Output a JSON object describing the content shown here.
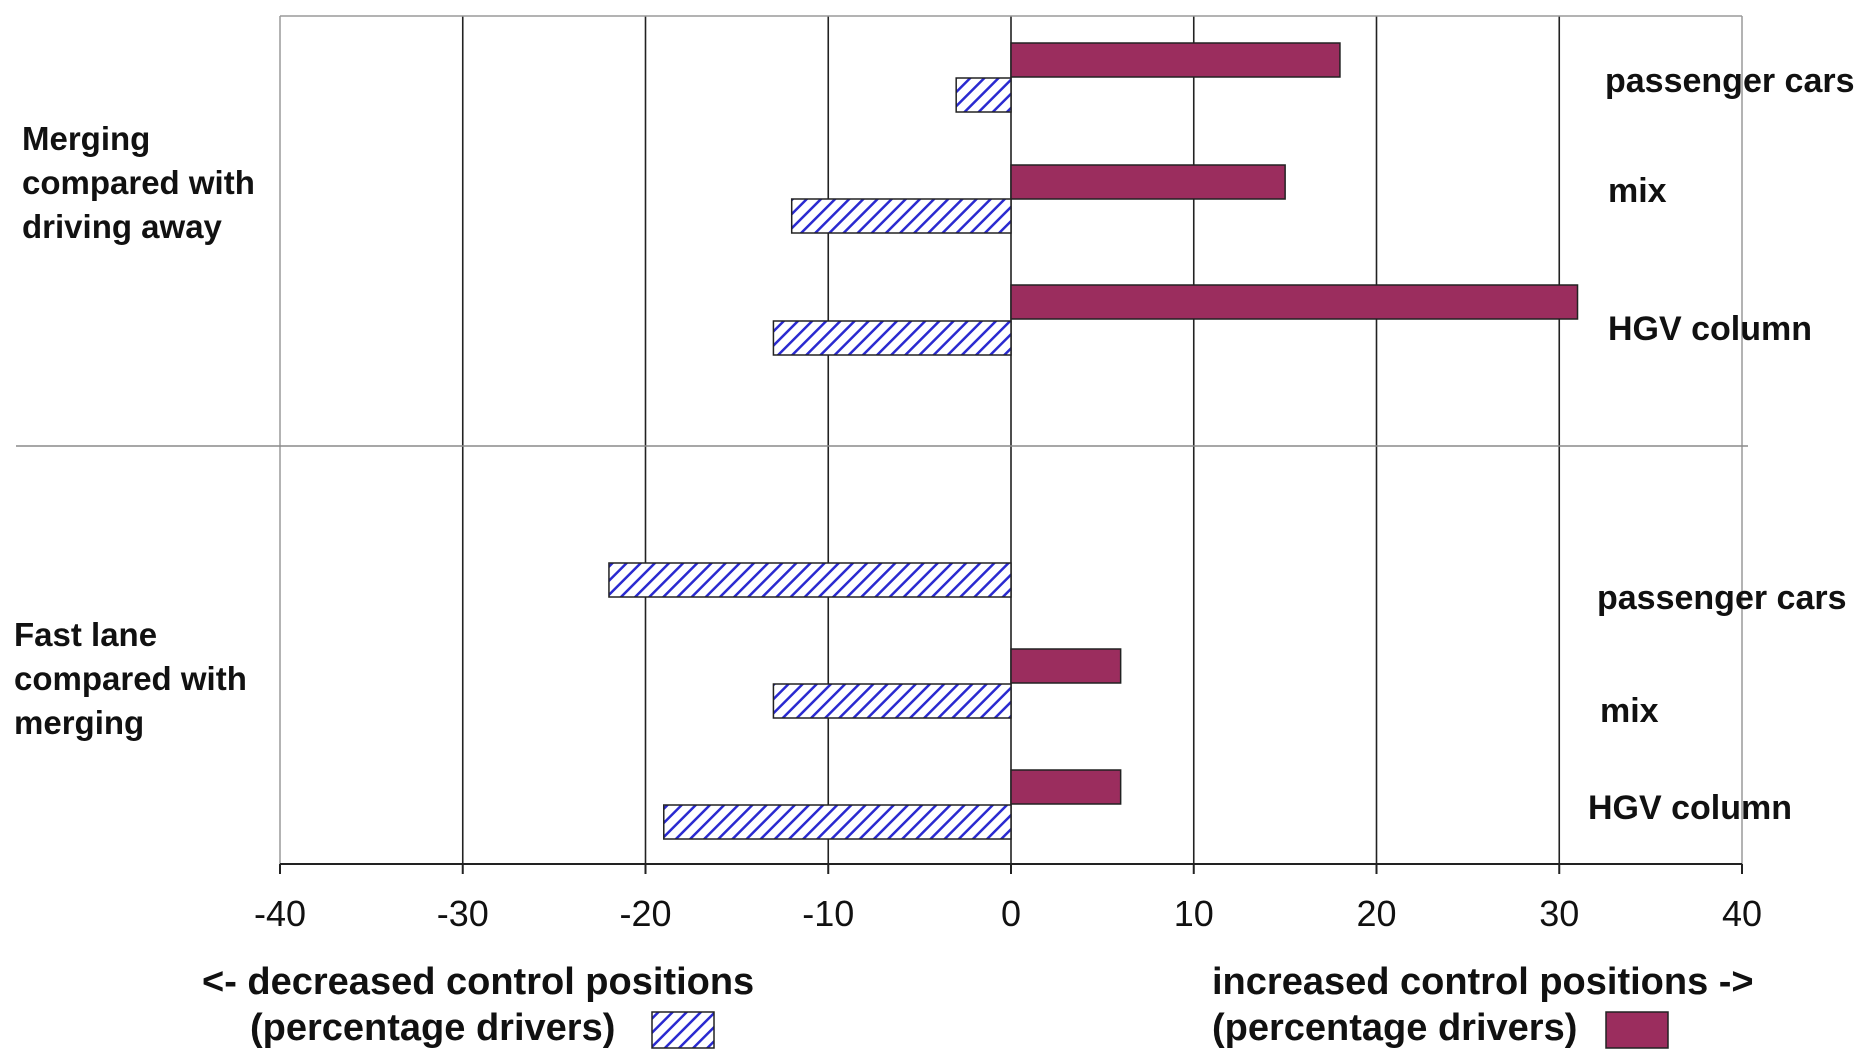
{
  "chart_data": {
    "type": "bar",
    "orientation": "horizontal",
    "groups": [
      {
        "label_lines": [
          "Merging",
          "compared with",
          "driving away"
        ],
        "rows": [
          {
            "category": "passenger cars",
            "increased": 18,
            "decreased": -3
          },
          {
            "category": "mix",
            "increased": 15,
            "decreased": -12
          },
          {
            "category": "HGV column",
            "increased": 31,
            "decreased": -13
          }
        ]
      },
      {
        "label_lines": [
          "Fast lane",
          "compared with",
          "merging"
        ],
        "rows": [
          {
            "category": "passenger cars",
            "increased": 0,
            "decreased": -22
          },
          {
            "category": "mix",
            "increased": 6,
            "decreased": -13
          },
          {
            "category": "HGV column",
            "increased": 6,
            "decreased": -19
          }
        ]
      }
    ],
    "series": [
      {
        "key": "increased",
        "color": "#9b2d5e",
        "pattern": "solid",
        "legend_lines": [
          "increased control positions  ->",
          "(percentage drivers)"
        ]
      },
      {
        "key": "decreased",
        "color": "#2a2ad0",
        "pattern": "diagonal-hatch",
        "legend_lines": [
          "<- decreased control positions",
          "(percentage drivers)"
        ]
      }
    ],
    "xlim": [
      -40,
      40
    ],
    "xticks": [
      -40,
      -30,
      -20,
      -10,
      0,
      10,
      20,
      30,
      40
    ],
    "xtick_labels": [
      "-40",
      "-30",
      "-20",
      "-10",
      "0",
      "10",
      "20",
      "30",
      "40"
    ],
    "grid": "vertical"
  }
}
